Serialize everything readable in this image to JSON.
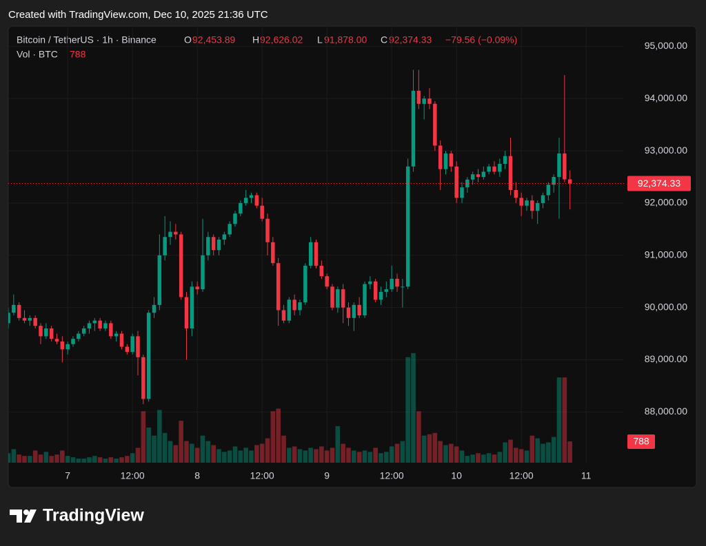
{
  "chart_data": {
    "type": "candlestick",
    "watermark": "Created with TradingView.com, Dec 10, 2025 21:36 UTC",
    "symbol": "Bitcoin / TetherUS · 1h · Binance",
    "ohlc_keys": [
      "O",
      "H",
      "L",
      "C"
    ],
    "last_labels": {
      "open": "92,453.89",
      "high": "92,626.02",
      "low": "91,878.00",
      "close": "92,374.33",
      "change": "−79.56 (−0.09%)"
    },
    "volume_title": "Vol · BTC",
    "brand": "TradingView",
    "up_color": "#089981",
    "down_color": "#f23645",
    "x": [
      -11,
      -10,
      -9,
      -8,
      -7,
      -6,
      -5,
      -4,
      -3,
      -2,
      -1,
      0,
      1,
      2,
      3,
      4,
      5,
      6,
      7,
      8,
      9,
      10,
      11,
      12,
      13,
      14,
      15,
      16,
      17,
      18,
      19,
      20,
      21,
      22,
      23,
      24,
      25,
      26,
      27,
      28,
      29,
      30,
      31,
      32,
      33,
      34,
      35,
      36,
      37,
      38,
      39,
      40,
      41,
      42,
      43,
      44,
      45,
      46,
      47,
      48,
      49,
      50,
      51,
      52,
      53,
      54,
      55,
      56,
      57,
      58,
      59,
      60,
      61,
      62,
      63,
      64,
      65,
      66,
      67,
      68,
      69,
      70,
      71,
      72,
      73,
      74,
      75,
      76,
      77,
      78,
      79,
      80,
      81,
      82,
      83,
      84,
      85,
      86,
      87,
      88,
      89,
      90,
      91,
      92,
      93
    ],
    "open": [
      89700,
      89900,
      90050,
      89800,
      89750,
      89800,
      89650,
      89450,
      89600,
      89400,
      89350,
      89200,
      89300,
      89400,
      89500,
      89600,
      89700,
      89750,
      89600,
      89700,
      89450,
      89500,
      89250,
      89150,
      89450,
      89050,
      88250,
      89900,
      90050,
      91000,
      91350,
      91450,
      91400,
      90200,
      89600,
      90400,
      90350,
      91000,
      91350,
      91100,
      91300,
      91400,
      91600,
      91800,
      92000,
      92100,
      92150,
      91950,
      91700,
      91250,
      90850,
      89950,
      89750,
      90150,
      89950,
      90100,
      90800,
      91250,
      90800,
      90600,
      90400,
      90000,
      90350,
      90000,
      89800,
      90050,
      89850,
      90450,
      90500,
      90150,
      90300,
      90350,
      90550,
      90400,
      90400,
      92700,
      94150,
      93900,
      94000,
      93900,
      93100,
      92650,
      92950,
      92700,
      92100,
      92300,
      92450,
      92550,
      92500,
      92600,
      92700,
      92600,
      92750,
      92900,
      92250,
      92100,
      91950,
      92050,
      91850,
      92000,
      92150,
      92350,
      92500,
      92950,
      92453.89
    ],
    "high": [
      90000,
      90250,
      90100,
      89950,
      89850,
      89850,
      89700,
      89700,
      89650,
      89500,
      89450,
      89350,
      89450,
      89550,
      89650,
      89750,
      89800,
      89800,
      89750,
      89750,
      89550,
      89550,
      89300,
      89500,
      89550,
      89100,
      89950,
      90200,
      91400,
      91750,
      91650,
      91600,
      91450,
      90300,
      90500,
      90500,
      91700,
      91450,
      91400,
      91350,
      91450,
      91650,
      91850,
      92050,
      92250,
      92200,
      92200,
      92100,
      91800,
      91350,
      90950,
      90050,
      90200,
      90250,
      90150,
      90850,
      91350,
      91300,
      90900,
      90650,
      90450,
      90400,
      90450,
      90100,
      90100,
      90200,
      90500,
      90600,
      90550,
      90400,
      90500,
      90800,
      90650,
      90550,
      92850,
      94550,
      94550,
      94050,
      94200,
      93950,
      93200,
      93000,
      93000,
      92800,
      92400,
      92500,
      92600,
      92650,
      92700,
      92750,
      92800,
      92850,
      93000,
      93250,
      92400,
      92200,
      92100,
      92150,
      92050,
      92200,
      92400,
      92550,
      93250,
      94450,
      92626.02
    ],
    "low": [
      89600,
      89850,
      89750,
      89700,
      89650,
      89600,
      89300,
      89400,
      89350,
      89300,
      88950,
      89100,
      89250,
      89350,
      89450,
      89500,
      89550,
      89550,
      89550,
      89400,
      89350,
      89200,
      89100,
      89100,
      88700,
      88150,
      88200,
      89800,
      89950,
      90900,
      91200,
      91300,
      90150,
      89000,
      89450,
      90250,
      90300,
      90900,
      91000,
      91000,
      91200,
      91350,
      91550,
      91750,
      91950,
      92000,
      91900,
      91650,
      91000,
      90800,
      89650,
      89700,
      89700,
      89850,
      89850,
      90050,
      90750,
      90750,
      90550,
      90350,
      89950,
      89900,
      89700,
      89650,
      89550,
      89800,
      89800,
      90350,
      90100,
      90050,
      90200,
      90300,
      90300,
      90000,
      90350,
      92600,
      93800,
      93600,
      93800,
      93000,
      92250,
      92550,
      92600,
      92000,
      92000,
      92200,
      92350,
      92400,
      92450,
      92550,
      92550,
      92500,
      92650,
      92150,
      92000,
      91750,
      91850,
      91700,
      91600,
      91900,
      92050,
      92200,
      91700,
      92400,
      91878
    ],
    "close": [
      89900,
      90050,
      89800,
      89750,
      89800,
      89650,
      89450,
      89600,
      89400,
      89350,
      89200,
      89300,
      89400,
      89500,
      89600,
      89700,
      89750,
      89600,
      89700,
      89450,
      89500,
      89250,
      89150,
      89450,
      89050,
      88250,
      89900,
      90050,
      91000,
      91350,
      91450,
      91400,
      90200,
      89600,
      90400,
      90350,
      91000,
      91350,
      91100,
      91300,
      91400,
      91600,
      91800,
      92000,
      92100,
      92150,
      91950,
      91700,
      91250,
      90850,
      89950,
      89750,
      90150,
      89950,
      90100,
      90800,
      91250,
      90800,
      90600,
      90400,
      90000,
      90350,
      90000,
      89800,
      90050,
      89850,
      90450,
      90500,
      90150,
      90300,
      90350,
      90550,
      90400,
      90400,
      92700,
      94150,
      93900,
      94000,
      93900,
      93100,
      92650,
      92950,
      92700,
      92100,
      92300,
      92450,
      92550,
      92500,
      92600,
      92700,
      92600,
      92750,
      92900,
      92250,
      92100,
      91950,
      92050,
      91850,
      92000,
      92150,
      92350,
      92500,
      92950,
      92453.89,
      92374.33
    ],
    "volume": [
      350,
      500,
      300,
      250,
      250,
      450,
      300,
      400,
      250,
      300,
      450,
      250,
      200,
      150,
      150,
      200,
      250,
      200,
      150,
      200,
      150,
      200,
      250,
      350,
      550,
      1900,
      1300,
      1000,
      1950,
      1100,
      800,
      650,
      1550,
      800,
      700,
      550,
      1000,
      800,
      650,
      500,
      400,
      450,
      600,
      450,
      550,
      450,
      650,
      700,
      900,
      1900,
      2000,
      1000,
      550,
      600,
      500,
      450,
      550,
      500,
      600,
      450,
      550,
      1350,
      700,
      550,
      450,
      400,
      450,
      400,
      550,
      350,
      400,
      600,
      700,
      800,
      3900,
      4050,
      1900,
      1000,
      1050,
      1100,
      800,
      650,
      700,
      600,
      450,
      250,
      300,
      350,
      300,
      350,
      300,
      400,
      750,
      850,
      550,
      500,
      450,
      1000,
      900,
      700,
      750,
      950,
      3150,
      3150,
      788
    ],
    "xlim": [
      -11,
      103
    ],
    "xticks": [
      {
        "value": 0,
        "label": "7"
      },
      {
        "value": 12,
        "label": "12:00"
      },
      {
        "value": 24,
        "label": "8"
      },
      {
        "value": 36,
        "label": "12:00"
      },
      {
        "value": 48,
        "label": "9"
      },
      {
        "value": 60,
        "label": "12:00"
      },
      {
        "value": 72,
        "label": "10"
      },
      {
        "value": 84,
        "label": "12:00"
      },
      {
        "value": 96,
        "label": "11"
      }
    ],
    "ylim": [
      87030,
      95360
    ],
    "yticks": [
      {
        "value": 95000,
        "label": "95,000.00"
      },
      {
        "value": 94000,
        "label": "94,000.00"
      },
      {
        "value": 93000,
        "label": "93,000.00"
      },
      {
        "value": 92000,
        "label": "92,000.00"
      },
      {
        "value": 91000,
        "label": "91,000.00"
      },
      {
        "value": 90000,
        "label": "90,000.00"
      },
      {
        "value": 89000,
        "label": "89,000.00"
      },
      {
        "value": 88000,
        "label": "88,000.00"
      }
    ],
    "volume_ylim": [
      0,
      5000
    ],
    "grid": true
  }
}
